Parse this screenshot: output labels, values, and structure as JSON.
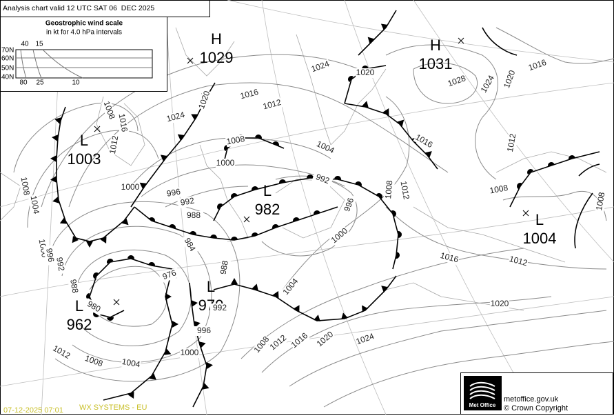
{
  "header": {
    "title": "Analysis chart valid 12 UTC SAT 06  DEC 2025"
  },
  "wind_scale": {
    "title": "Geostrophic wind scale",
    "subtitle": "in kt for 4.0 hPa intervals",
    "latitudes": [
      "70N",
      "60N",
      "50N",
      "40N"
    ],
    "top_labels": [
      "40",
      "15"
    ],
    "bottom_labels": [
      "80",
      "25",
      "10"
    ]
  },
  "centers": [
    {
      "type": "H",
      "pressure": 1029
    },
    {
      "type": "L",
      "pressure": 1003
    },
    {
      "type": "L",
      "pressure": 982
    },
    {
      "type": "H",
      "pressure": 1031
    },
    {
      "type": "L",
      "pressure": 1004
    },
    {
      "type": "L",
      "pressure": 962
    },
    {
      "type": "L",
      "pressure": 970
    }
  ],
  "isobar_labels": [
    1024,
    1020,
    1028,
    1024,
    1020,
    1016,
    1016,
    1012,
    1024,
    1020,
    1008,
    1016,
    1012,
    1008,
    1004,
    1000,
    1016,
    1012,
    1008,
    1012,
    1008,
    1008,
    992,
    1000,
    996,
    992,
    988,
    984,
    996,
    1000,
    1016,
    1012,
    1020,
    1004,
    988,
    976,
    992,
    996,
    1000,
    1004,
    1008,
    1012,
    1008,
    1012,
    1016,
    1020,
    1024,
    1008,
    1004,
    1000,
    996,
    992,
    988,
    980
  ],
  "logo": {
    "text": "Met Office"
  },
  "footer": {
    "website": "metoffice.gov.uk",
    "copyright": "© Crown Copyright",
    "timestamp": "07-12-2025 07:01",
    "systems": "WX SYSTEMS - EU"
  }
}
